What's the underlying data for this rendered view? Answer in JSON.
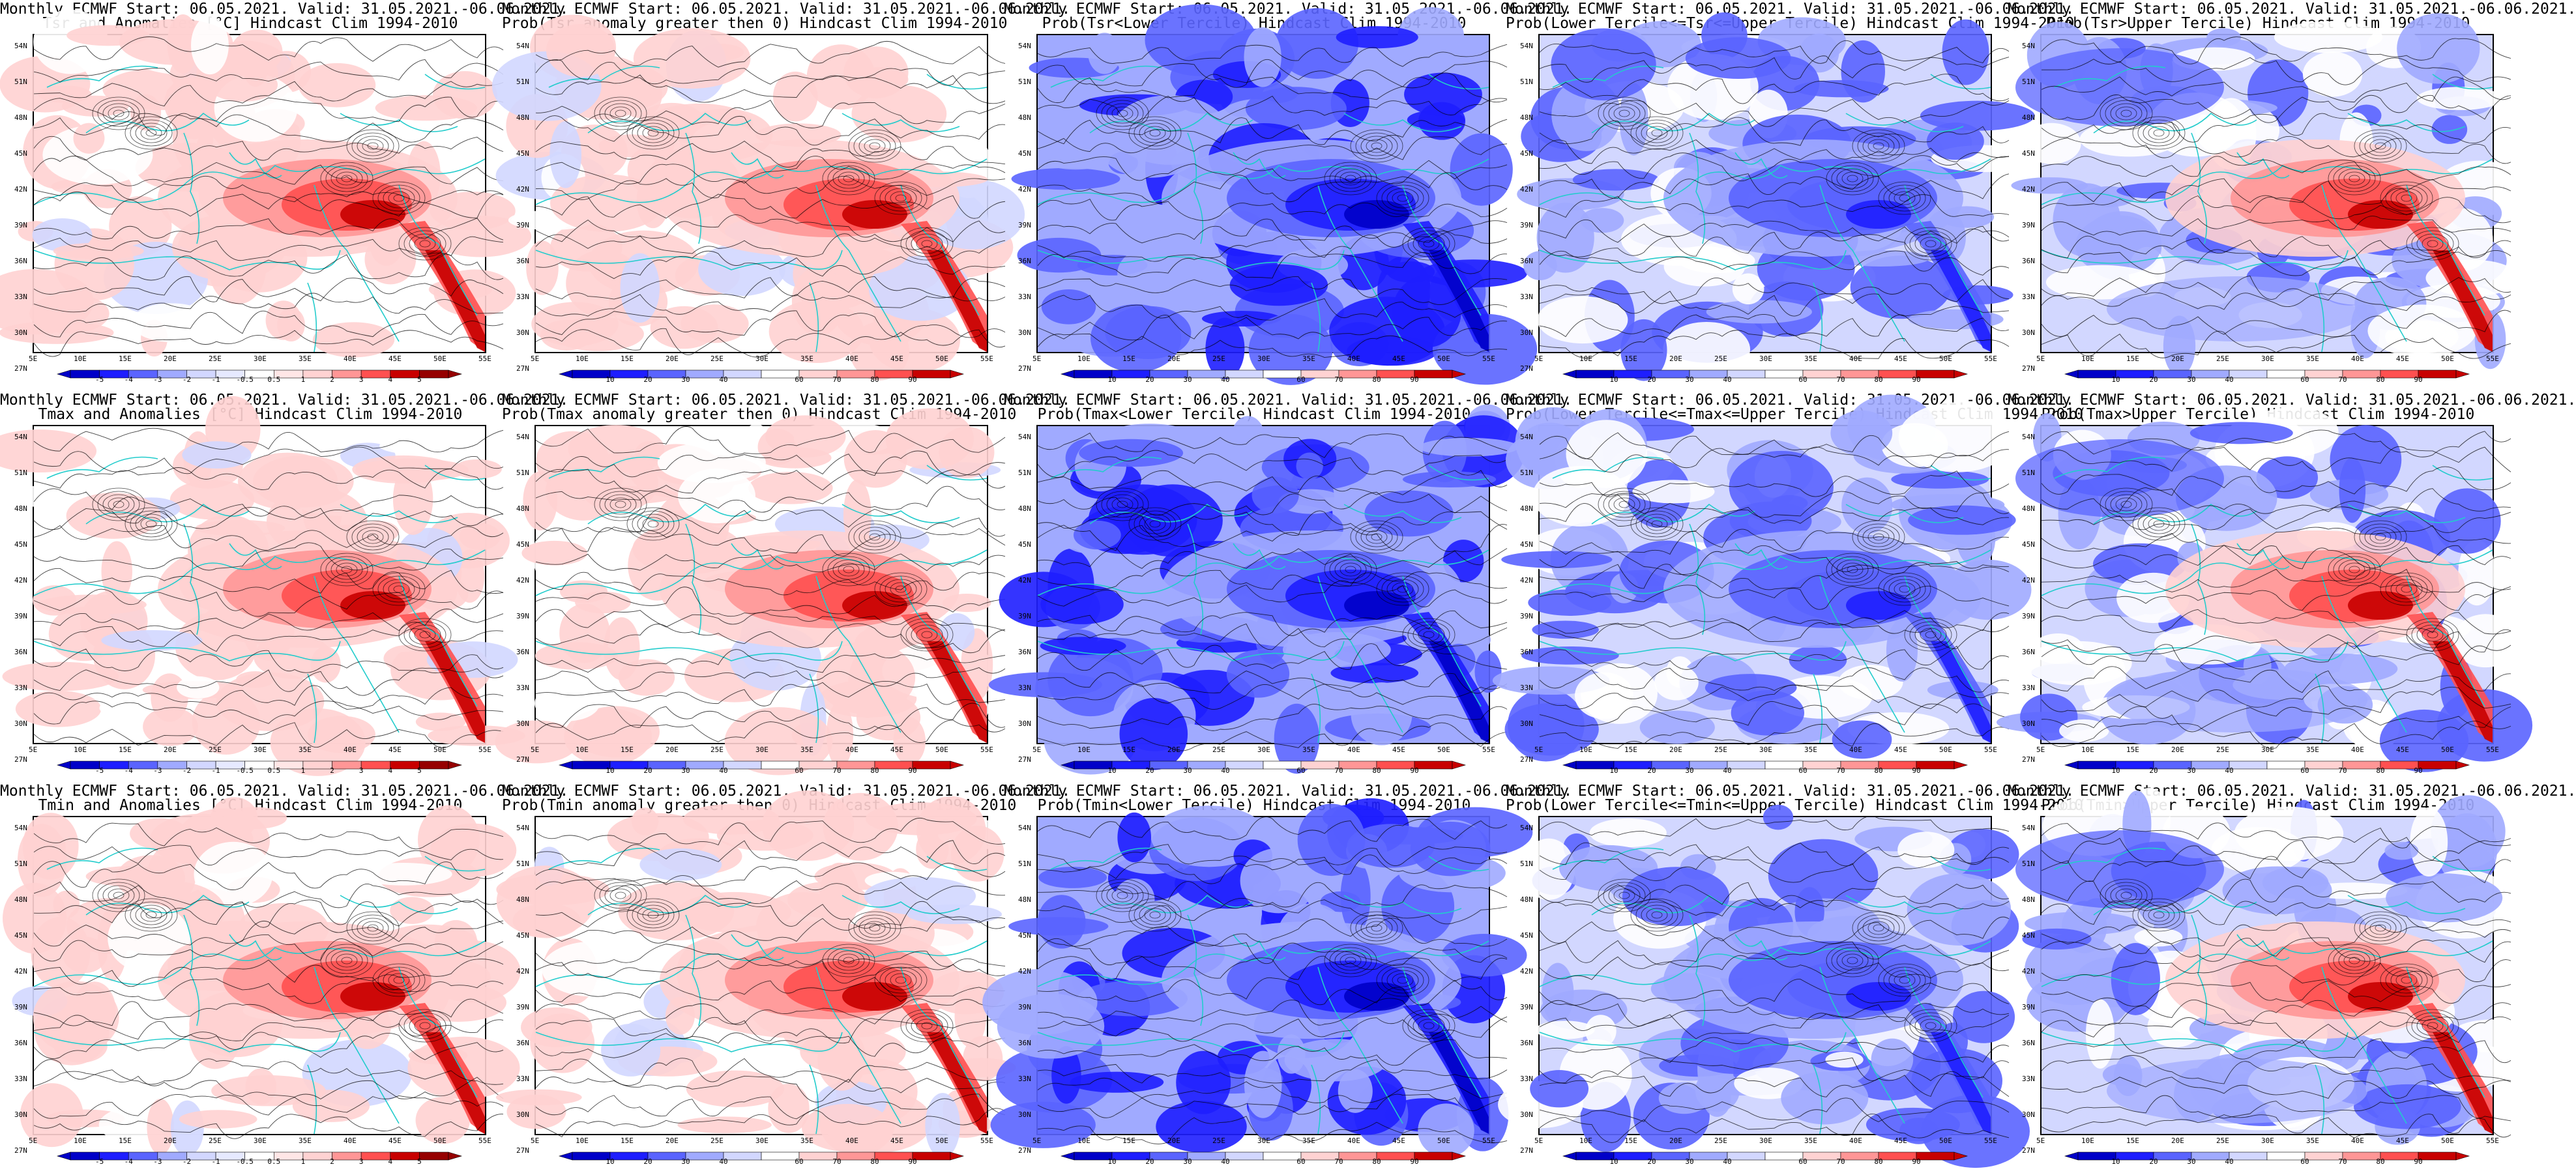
{
  "colors": {
    "cold3": "#1e1eff",
    "cold2": "#5a64ff",
    "cold1": "#a0aaff",
    "cold0": "#d2d7ff",
    "warm0": "#ffd2d2",
    "warm1": "#ff9696",
    "warm2": "#ff5050",
    "warm3": "#c80000",
    "coast": "#22cccc",
    "contour": "#000000"
  },
  "map": {
    "lat_labels": [
      "54N",
      "51N",
      "48N",
      "45N",
      "42N",
      "39N",
      "36N",
      "33N",
      "30N",
      "27N"
    ],
    "lon_labels": [
      "5E",
      "10E",
      "15E",
      "20E",
      "25E",
      "30E",
      "35E",
      "40E",
      "45E",
      "50E",
      "55E"
    ]
  },
  "colorbars": {
    "anom": [
      "-5",
      "-4",
      "-3",
      "-2",
      "-1",
      "-0.5",
      "0.5",
      "1",
      "2",
      "3",
      "4",
      "5"
    ],
    "prob_a": [
      "10",
      "20",
      "30",
      "40",
      "60",
      "70",
      "80",
      "90"
    ],
    "prob_b": [
      "10",
      "20",
      "30",
      "40",
      "60",
      "70",
      "80",
      "90"
    ]
  },
  "panels": [
    {
      "line1": "Monthly ECMWF Start: 06.05.2021. Valid: 31.05.2021.-06.06.2021.",
      "line2": "Tsr and Anomalies [°C] Hindcast Clim 1994-2010",
      "kind": "anom",
      "warm_level": 0.75,
      "cold_level": 0.1
    },
    {
      "line1": "Monthly ECMWF Start: 06.05.2021. Valid: 31.05.2021.-06.06.2021.",
      "line2": "Prob(Tsr anomaly greater then 0) Hindcast Clim 1994-2010",
      "kind": "warmprob",
      "warm_level": 0.8,
      "cold_level": 0.1
    },
    {
      "line1": "Monthly ECMWF Start: 06.05.2021. Valid: 31.05.2021.-06.06.2021.",
      "line2": "Prob(Tsr<Lower Tercile) Hindcast Clim 1994-2010",
      "kind": "coldprob",
      "warm_level": 0.0,
      "cold_level": 0.9
    },
    {
      "line1": "Monthly ECMWF Start: 06.05.2021. Valid: 31.05.2021.-06.06.2021.",
      "line2": "Prob(Lower Tercile<=Tsr<=Upper Tercile) Hindcast Clim 1994-2010",
      "kind": "coldprob",
      "warm_level": 0.0,
      "cold_level": 0.55
    },
    {
      "line1": "Monthly ECMWF Start: 06.05.2021. Valid: 31.05.2021.-06.06.2021.",
      "line2": "Prob(Tsr>Upper Tercile) Hindcast Clim 1994-2010",
      "kind": "mixed",
      "warm_level": 0.6,
      "cold_level": 0.5
    },
    {
      "line1": "Monthly ECMWF Start: 06.05.2021. Valid: 31.05.2021.-06.06.2021.",
      "line2": "Tmax and Anomalies [°C] Hindcast Clim 1994-2010",
      "kind": "anom",
      "warm_level": 0.8,
      "cold_level": 0.1
    },
    {
      "line1": "Monthly ECMWF Start: 06.05.2021. Valid: 31.05.2021.-06.06.2021.",
      "line2": "Prob(Tmax anomaly greater then 0) Hindcast Clim 1994-2010",
      "kind": "warmprob",
      "warm_level": 0.8,
      "cold_level": 0.1
    },
    {
      "line1": "Monthly ECMWF Start: 06.05.2021. Valid: 31.05.2021.-06.06.2021.",
      "line2": "Prob(Tmax<Lower Tercile) Hindcast Clim 1994-2010",
      "kind": "coldprob",
      "warm_level": 0.0,
      "cold_level": 0.9
    },
    {
      "line1": "Monthly ECMWF Start: 06.05.2021. Valid: 31.05.2021.-06.06.2021.",
      "line2": "Prob(Lower Tercile<=Tmax<=Upper Tercile) Hindcast Clim 1994-2010",
      "kind": "coldprob",
      "warm_level": 0.0,
      "cold_level": 0.55
    },
    {
      "line1": "Monthly ECMWF Start: 06.05.2021. Valid: 31.05.2021.-06.06.2021.",
      "line2": "Prob(Tmax>Upper Tercile) Hindcast Clim 1994-2010",
      "kind": "mixed",
      "warm_level": 0.5,
      "cold_level": 0.5
    },
    {
      "line1": "Monthly ECMWF Start: 06.05.2021. Valid: 31.05.2021.-06.06.2021.",
      "line2": "Tmin and Anomalies [°C] Hindcast Clim 1994-2010",
      "kind": "anom",
      "warm_level": 0.7,
      "cold_level": 0.05
    },
    {
      "line1": "Monthly ECMWF Start: 06.05.2021. Valid: 31.05.2021.-06.06.2021.",
      "line2": "Prob(Tmin anomaly greater then 0) Hindcast Clim 1994-2010",
      "kind": "warmprob",
      "warm_level": 0.85,
      "cold_level": 0.05
    },
    {
      "line1": "Monthly ECMWF Start: 06.05.2021. Valid: 31.05.2021.-06.06.2021.",
      "line2": "Prob(Tmin<Lower Tercile) Hindcast Clim 1994-2010",
      "kind": "coldprob",
      "warm_level": 0.0,
      "cold_level": 0.85
    },
    {
      "line1": "Monthly ECMWF Start: 06.05.2021. Valid: 31.05.2021.-06.06.2021.",
      "line2": "Prob(Lower Tercile<=Tmin<=Upper Tercile) Hindcast Clim 1994-2010",
      "kind": "coldprob",
      "warm_level": 0.0,
      "cold_level": 0.6
    },
    {
      "line1": "Monthly ECMWF Start: 06.05.2021. Valid: 31.05.2021.-06.06.2021.",
      "line2": "Prob(Tmin>Upper Tercile) Hindcast Clim 1994-2010",
      "kind": "mixed",
      "warm_level": 0.55,
      "cold_level": 0.45
    }
  ]
}
